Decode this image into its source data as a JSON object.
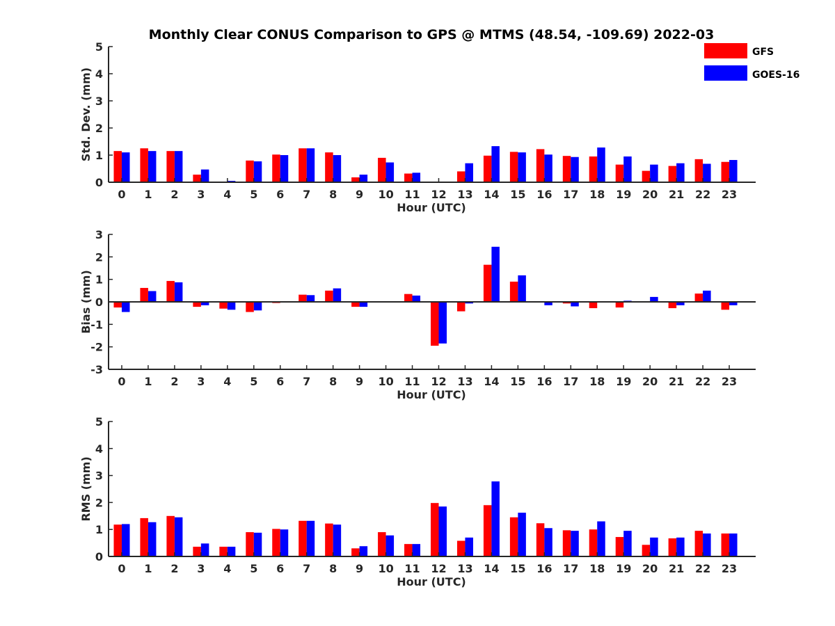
{
  "title": "Monthly Clear CONUS Comparison to GPS @ MTMS (48.54, -109.69) 2022-03",
  "colors": {
    "GFS": "#ff0000",
    "GOES-16": "#0000ff"
  },
  "legend": [
    "GFS",
    "GOES-16"
  ],
  "chart_data": [
    {
      "type": "bar",
      "xlabel": "Hour (UTC)",
      "ylabel": "Std. Dev. (mm)",
      "ylim": [
        0,
        5
      ],
      "yticks": [
        0,
        1,
        2,
        3,
        4,
        5
      ],
      "categories": [
        "0",
        "1",
        "2",
        "3",
        "4",
        "5",
        "6",
        "7",
        "8",
        "9",
        "10",
        "11",
        "12",
        "13",
        "14",
        "15",
        "16",
        "17",
        "18",
        "19",
        "20",
        "21",
        "22",
        "23"
      ],
      "series": [
        {
          "name": "GFS",
          "values": [
            1.15,
            1.25,
            1.15,
            0.28,
            0.0,
            0.8,
            1.02,
            1.25,
            1.1,
            0.18,
            0.9,
            0.32,
            0.0,
            0.4,
            0.98,
            1.12,
            1.22,
            0.97,
            0.95,
            0.65,
            0.42,
            0.6,
            0.85,
            0.75
          ]
        },
        {
          "name": "GOES-16",
          "values": [
            1.1,
            1.15,
            1.15,
            0.47,
            0.05,
            0.77,
            1.0,
            1.25,
            1.0,
            0.28,
            0.73,
            0.35,
            0.0,
            0.7,
            1.33,
            1.1,
            1.02,
            0.93,
            1.28,
            0.95,
            0.65,
            0.7,
            0.68,
            0.82
          ]
        }
      ]
    },
    {
      "type": "bar",
      "xlabel": "Hour (UTC)",
      "ylabel": "Bias (mm)",
      "ylim": [
        -3,
        3
      ],
      "yticks": [
        -3,
        -2,
        -1,
        0,
        1,
        2,
        3
      ],
      "categories": [
        "0",
        "1",
        "2",
        "3",
        "4",
        "5",
        "6",
        "7",
        "8",
        "9",
        "10",
        "11",
        "12",
        "13",
        "14",
        "15",
        "16",
        "17",
        "18",
        "19",
        "20",
        "21",
        "22",
        "23"
      ],
      "series": [
        {
          "name": "GFS",
          "values": [
            -0.25,
            0.62,
            0.93,
            -0.22,
            -0.3,
            -0.45,
            -0.05,
            0.32,
            0.5,
            -0.22,
            0.0,
            0.35,
            -1.95,
            -0.42,
            1.65,
            0.9,
            0.0,
            -0.07,
            -0.28,
            -0.25,
            0.0,
            -0.28,
            0.37,
            -0.35
          ]
        },
        {
          "name": "GOES-16",
          "values": [
            -0.45,
            0.48,
            0.87,
            -0.15,
            -0.35,
            -0.38,
            0.0,
            0.3,
            0.6,
            -0.22,
            0.02,
            0.28,
            -1.85,
            -0.07,
            2.45,
            1.18,
            -0.15,
            -0.2,
            0.02,
            0.05,
            0.22,
            -0.15,
            0.5,
            -0.15
          ]
        }
      ]
    },
    {
      "type": "bar",
      "xlabel": "Hour (UTC)",
      "ylabel": "RMS (mm)",
      "ylim": [
        0,
        5
      ],
      "yticks": [
        0,
        1,
        2,
        3,
        4,
        5
      ],
      "categories": [
        "0",
        "1",
        "2",
        "3",
        "4",
        "5",
        "6",
        "7",
        "8",
        "9",
        "10",
        "11",
        "12",
        "13",
        "14",
        "15",
        "16",
        "17",
        "18",
        "19",
        "20",
        "21",
        "22",
        "23"
      ],
      "series": [
        {
          "name": "GFS",
          "values": [
            1.18,
            1.42,
            1.5,
            0.36,
            0.36,
            0.9,
            1.02,
            1.32,
            1.22,
            0.3,
            0.9,
            0.46,
            1.98,
            0.58,
            1.9,
            1.45,
            1.23,
            0.97,
            1.0,
            0.72,
            0.43,
            0.67,
            0.95,
            0.85
          ]
        },
        {
          "name": "GOES-16",
          "values": [
            1.2,
            1.27,
            1.45,
            0.48,
            0.36,
            0.88,
            1.0,
            1.32,
            1.18,
            0.38,
            0.78,
            0.46,
            1.85,
            0.7,
            2.78,
            1.62,
            1.05,
            0.95,
            1.3,
            0.95,
            0.7,
            0.7,
            0.85,
            0.85
          ]
        }
      ]
    }
  ]
}
